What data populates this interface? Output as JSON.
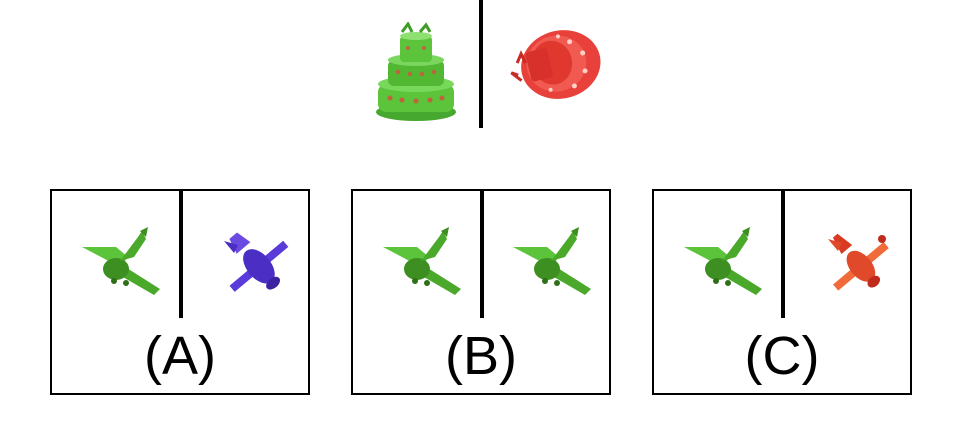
{
  "example": {
    "left_object": {
      "icon": "green-cake-icon",
      "color": "#5cc43a"
    },
    "right_object": {
      "icon": "red-cake-icon",
      "color": "#e8403a"
    }
  },
  "options": [
    {
      "label": "(A)",
      "left_color": "#4aa82a",
      "right_color": "#4b2fc4",
      "right_icon": "purple-airplane-icon"
    },
    {
      "label": "(B)",
      "left_color": "#4aa82a",
      "right_color": "#4aa82a",
      "right_icon": "green-airplane-icon"
    },
    {
      "label": "(C)",
      "left_color": "#4aa82a",
      "right_color": "#e04a2a",
      "right_icon": "red-airplane-icon"
    }
  ]
}
